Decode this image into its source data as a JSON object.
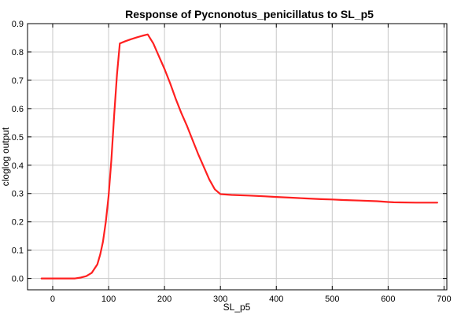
{
  "chart_data": {
    "type": "line",
    "title": "Response of Pycnonotus_penicillatus to SL_p5",
    "xlabel": "SL_p5",
    "ylabel": "cloglog output",
    "xlim": [
      -45,
      705
    ],
    "ylim": [
      -0.04,
      0.9
    ],
    "xticks": [
      0,
      100,
      200,
      300,
      400,
      500,
      600,
      700
    ],
    "yticks": [
      0.0,
      0.1,
      0.2,
      0.3,
      0.4,
      0.5,
      0.6,
      0.7,
      0.8,
      0.9
    ],
    "ytick_labels": [
      "0.0",
      "0.1",
      "0.2",
      "0.3",
      "0.4",
      "0.5",
      "0.6",
      "0.7",
      "0.8",
      "0.9"
    ],
    "grid": true,
    "series": [
      {
        "color": "#ff2020",
        "x": [
          -20,
          0,
          20,
          40,
          50,
          60,
          70,
          80,
          85,
          90,
          95,
          100,
          105,
          110,
          115,
          120,
          130,
          140,
          150,
          160,
          170,
          180,
          190,
          200,
          210,
          220,
          230,
          240,
          250,
          260,
          270,
          280,
          290,
          300,
          320,
          350,
          380,
          400,
          430,
          450,
          480,
          500,
          520,
          550,
          580,
          600,
          610,
          650,
          688
        ],
        "y": [
          0.0,
          0.0,
          0.0,
          0.0,
          0.003,
          0.008,
          0.02,
          0.05,
          0.085,
          0.13,
          0.2,
          0.29,
          0.42,
          0.58,
          0.72,
          0.83,
          0.838,
          0.845,
          0.851,
          0.857,
          0.862,
          0.83,
          0.785,
          0.74,
          0.69,
          0.635,
          0.585,
          0.54,
          0.49,
          0.44,
          0.395,
          0.35,
          0.315,
          0.298,
          0.295,
          0.293,
          0.29,
          0.288,
          0.285,
          0.283,
          0.28,
          0.279,
          0.277,
          0.275,
          0.273,
          0.27,
          0.269,
          0.268,
          0.268
        ]
      }
    ]
  }
}
